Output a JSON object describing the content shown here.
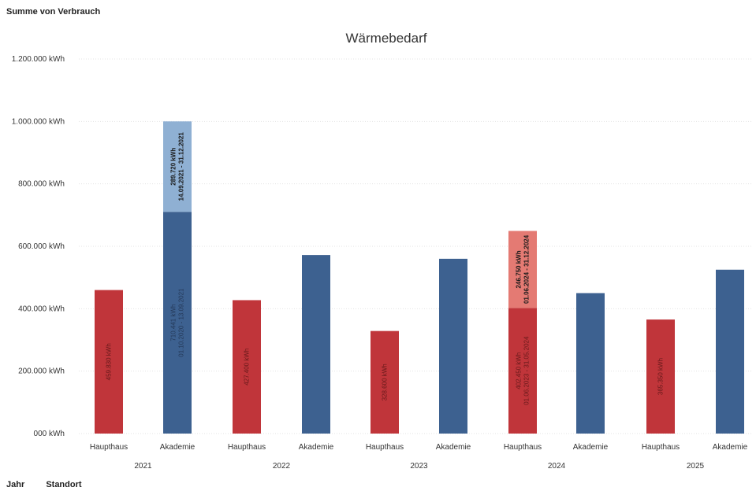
{
  "header": {
    "measure_label": "Summe von Verbrauch"
  },
  "footer": {
    "row_field": "Jahr",
    "column_field": "Standort"
  },
  "colors": {
    "haupthaus": "#c0353a",
    "haupthaus_extra": "#e47a73",
    "akademie": "#3d6190",
    "akademie_extra": "#8fb0d3",
    "grid": "#e3e3e3"
  },
  "chart_data": {
    "type": "bar",
    "stacked": true,
    "title": "Wärmebedarf",
    "ylim": [
      0,
      1200000
    ],
    "yticks": [
      {
        "value": 0,
        "label": "000 kWh"
      },
      {
        "value": 200000,
        "label": "200.000 kWh"
      },
      {
        "value": 400000,
        "label": "400.000 kWh"
      },
      {
        "value": 600000,
        "label": "600.000 kWh"
      },
      {
        "value": 800000,
        "label": "800.000 kWh"
      },
      {
        "value": 1000000,
        "label": "1.000.000 kWh"
      },
      {
        "value": 1200000,
        "label": "1.200.000 kWh"
      }
    ],
    "grid": true,
    "years": [
      "2021",
      "2022",
      "2023",
      "2024",
      "2025"
    ],
    "bars": [
      {
        "year": "2021",
        "category": "Haupthaus",
        "segments": [
          {
            "value": 459830,
            "kind": "haupthaus",
            "lines": [
              "459.830 kWh"
            ]
          }
        ]
      },
      {
        "year": "2021",
        "category": "Akademie",
        "segments": [
          {
            "value": 710441,
            "kind": "akademie",
            "lines": [
              "710.441 kWh",
              "01.10.2020 - 13.09.2021"
            ]
          },
          {
            "value": 289720,
            "kind": "akademie_extra",
            "bold": true,
            "lines": [
              "289.720 kWh",
              "14.09.2021 - 31.12.2021"
            ]
          }
        ]
      },
      {
        "year": "2022",
        "category": "Haupthaus",
        "segments": [
          {
            "value": 427400,
            "kind": "haupthaus",
            "lines": [
              "427.400 kWh"
            ]
          }
        ]
      },
      {
        "year": "2022",
        "category": "Akademie",
        "segments": [
          {
            "value": 572000,
            "kind": "akademie",
            "lines": []
          }
        ]
      },
      {
        "year": "2023",
        "category": "Haupthaus",
        "segments": [
          {
            "value": 328600,
            "kind": "haupthaus",
            "lines": [
              "328.600 kWh"
            ]
          }
        ]
      },
      {
        "year": "2023",
        "category": "Akademie",
        "segments": [
          {
            "value": 560000,
            "kind": "akademie",
            "lines": []
          }
        ]
      },
      {
        "year": "2024",
        "category": "Haupthaus",
        "segments": [
          {
            "value": 402450,
            "kind": "haupthaus",
            "lines": [
              "402.450 kWh",
              "01.06.2023 - 31.05.2024"
            ]
          },
          {
            "value": 246750,
            "kind": "haupthaus_extra",
            "bold": true,
            "lines": [
              "246.750 kWh",
              "01.06.2024 - 31.12.2024"
            ]
          }
        ]
      },
      {
        "year": "2024",
        "category": "Akademie",
        "segments": [
          {
            "value": 450000,
            "kind": "akademie",
            "lines": []
          }
        ]
      },
      {
        "year": "2025",
        "category": "Haupthaus",
        "segments": [
          {
            "value": 365350,
            "kind": "haupthaus",
            "lines": [
              "365.350 kWh"
            ]
          }
        ]
      },
      {
        "year": "2025",
        "category": "Akademie",
        "segments": [
          {
            "value": 525000,
            "kind": "akademie",
            "lines": []
          }
        ]
      }
    ]
  }
}
